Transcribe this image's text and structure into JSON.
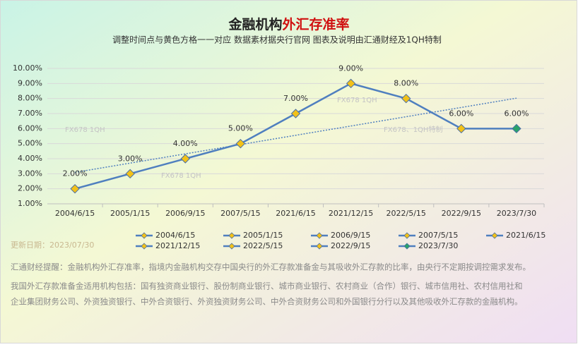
{
  "chart_data": {
    "type": "line",
    "title": [
      "金融机构",
      "外汇存准率"
    ],
    "subtitle": "调整时间点与黄色方格一一对应 数据素材据央行官网 图表及说明由汇通财经及1QH特制",
    "categories": [
      "2004/6/15",
      "2005/1/15",
      "2006/9/15",
      "2007/5/15",
      "2021/6/15",
      "2021/12/15",
      "2022/5/15",
      "2022/9/15",
      "2023/7/30"
    ],
    "values": [
      2,
      3,
      4,
      5,
      7,
      9,
      8,
      6,
      6
    ],
    "value_labels": [
      "2.00%",
      "3.00%",
      "4.00%",
      "5.00%",
      "7.00%",
      "9.00%",
      "8.00%",
      "6.00%",
      "6.00%"
    ],
    "color": "#4f7fbf",
    "marker_colors": [
      "#f2c118",
      "#f2c118",
      "#f2c118",
      "#f2c118",
      "#f2c118",
      "#f2c118",
      "#f2c118",
      "#f2c118",
      "#2aa36b"
    ],
    "trendline": true,
    "ylim": [
      1,
      10
    ],
    "yticks": [
      {
        "value": 1,
        "label": "1.00%"
      },
      {
        "value": 2,
        "label": "2.00%"
      },
      {
        "value": 3,
        "label": "3.00%"
      },
      {
        "value": 4,
        "label": "4.00%"
      },
      {
        "value": 5,
        "label": "5.00%"
      },
      {
        "value": 6,
        "label": "6.00%"
      },
      {
        "value": 7,
        "label": "7.00%"
      },
      {
        "value": 8,
        "label": "8.00%"
      },
      {
        "value": 9,
        "label": "9.00%"
      },
      {
        "value": 10,
        "label": "10.00%"
      }
    ],
    "grid": true,
    "watermarks": [
      "FX678  1QH",
      "FX678  1QH",
      "FX678  1QH",
      "FX678、1QH特制"
    ]
  },
  "update_date": "更新日期：2023/07/30",
  "notes": [
    "汇通财经提醒：金融机构外汇存准率，指境内金融机构交存中国央行的外汇存款准备金与其吸收外汇存款的比率，由央行不定期按调控需求发布。",
    "我国外汇存款准备金适用机构包括：国有独资商业银行、股份制商业银行、城市商业银行、农村商业（合作）银行、城市信用社、农村信用社和",
    "企业集团财务公司、外资独资银行、中外合资银行、外资独资财务公司、中外合资财务公司和外国银行分行以及其他吸收外汇存款的金融机构。"
  ]
}
